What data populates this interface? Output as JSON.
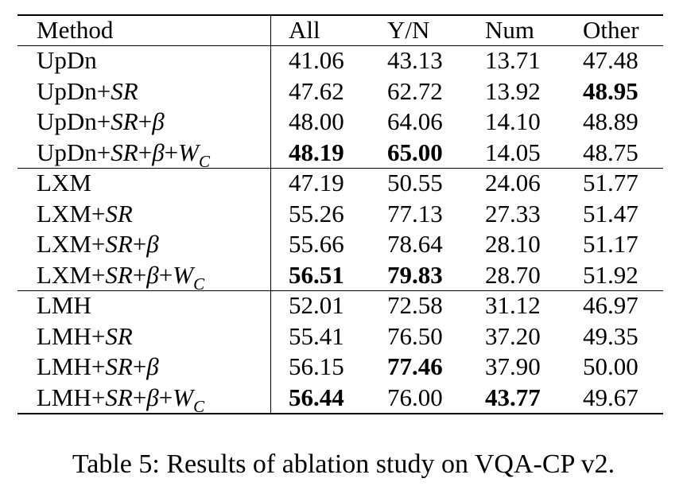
{
  "table": {
    "header": [
      "Method",
      "All",
      "Y/N",
      "Num",
      "Other"
    ],
    "groups": [
      {
        "rows": [
          {
            "method": [
              {
                "t": "UpDn"
              }
            ],
            "cells": [
              "41.06",
              "43.13",
              "13.71",
              "47.48"
            ],
            "bold": []
          },
          {
            "method": [
              {
                "t": "UpDn+"
              },
              {
                "t": "SR",
                "italic": true
              }
            ],
            "cells": [
              "47.62",
              "62.72",
              "13.92",
              "48.95"
            ],
            "bold": [
              3
            ]
          },
          {
            "method": [
              {
                "t": "UpDn+"
              },
              {
                "t": "SR",
                "italic": true
              },
              {
                "t": "+"
              },
              {
                "t": "β",
                "italic": true
              }
            ],
            "cells": [
              "48.00",
              "64.06",
              "14.10",
              "48.89"
            ],
            "bold": []
          },
          {
            "method": [
              {
                "t": "UpDn+"
              },
              {
                "t": "SR",
                "italic": true
              },
              {
                "t": "+"
              },
              {
                "t": "β",
                "italic": true
              },
              {
                "t": "+"
              },
              {
                "t": "W",
                "italic": true
              },
              {
                "t": "C",
                "italic": true,
                "sub": true
              }
            ],
            "cells": [
              "48.19",
              "65.00",
              "14.05",
              "48.75"
            ],
            "bold": [
              0,
              1
            ]
          }
        ]
      },
      {
        "rows": [
          {
            "method": [
              {
                "t": "LXM"
              }
            ],
            "cells": [
              "47.19",
              "50.55",
              "24.06",
              "51.77"
            ],
            "bold": []
          },
          {
            "method": [
              {
                "t": "LXM+"
              },
              {
                "t": "SR",
                "italic": true
              }
            ],
            "cells": [
              "55.26",
              "77.13",
              "27.33",
              "51.47"
            ],
            "bold": []
          },
          {
            "method": [
              {
                "t": "LXM+"
              },
              {
                "t": "SR",
                "italic": true
              },
              {
                "t": "+"
              },
              {
                "t": "β",
                "italic": true
              }
            ],
            "cells": [
              "55.66",
              "78.64",
              "28.10",
              "51.17"
            ],
            "bold": []
          },
          {
            "method": [
              {
                "t": "LXM+"
              },
              {
                "t": "SR",
                "italic": true
              },
              {
                "t": "+"
              },
              {
                "t": "β",
                "italic": true
              },
              {
                "t": "+"
              },
              {
                "t": "W",
                "italic": true
              },
              {
                "t": "C",
                "italic": true,
                "sub": true
              }
            ],
            "cells": [
              "56.51",
              "79.83",
              "28.70",
              "51.92"
            ],
            "bold": [
              0,
              1
            ]
          }
        ]
      },
      {
        "rows": [
          {
            "method": [
              {
                "t": "LMH"
              }
            ],
            "cells": [
              "52.01",
              "72.58",
              "31.12",
              "46.97"
            ],
            "bold": []
          },
          {
            "method": [
              {
                "t": "LMH+"
              },
              {
                "t": "SR",
                "italic": true
              }
            ],
            "cells": [
              "55.41",
              "76.50",
              "37.20",
              "49.35"
            ],
            "bold": []
          },
          {
            "method": [
              {
                "t": "LMH+"
              },
              {
                "t": "SR",
                "italic": true
              },
              {
                "t": "+"
              },
              {
                "t": "β",
                "italic": true
              }
            ],
            "cells": [
              "56.15",
              "77.46",
              "37.90",
              "50.00"
            ],
            "bold": [
              1
            ]
          },
          {
            "method": [
              {
                "t": "LMH+"
              },
              {
                "t": "SR",
                "italic": true
              },
              {
                "t": "+"
              },
              {
                "t": "β",
                "italic": true
              },
              {
                "t": "+"
              },
              {
                "t": "W",
                "italic": true
              },
              {
                "t": "C",
                "italic": true,
                "sub": true
              }
            ],
            "cells": [
              "56.44",
              "76.00",
              "43.77",
              "49.67"
            ],
            "bold": [
              0,
              2
            ]
          }
        ]
      }
    ],
    "caption": "Table 5: Results of ablation study on VQA-CP v2."
  }
}
